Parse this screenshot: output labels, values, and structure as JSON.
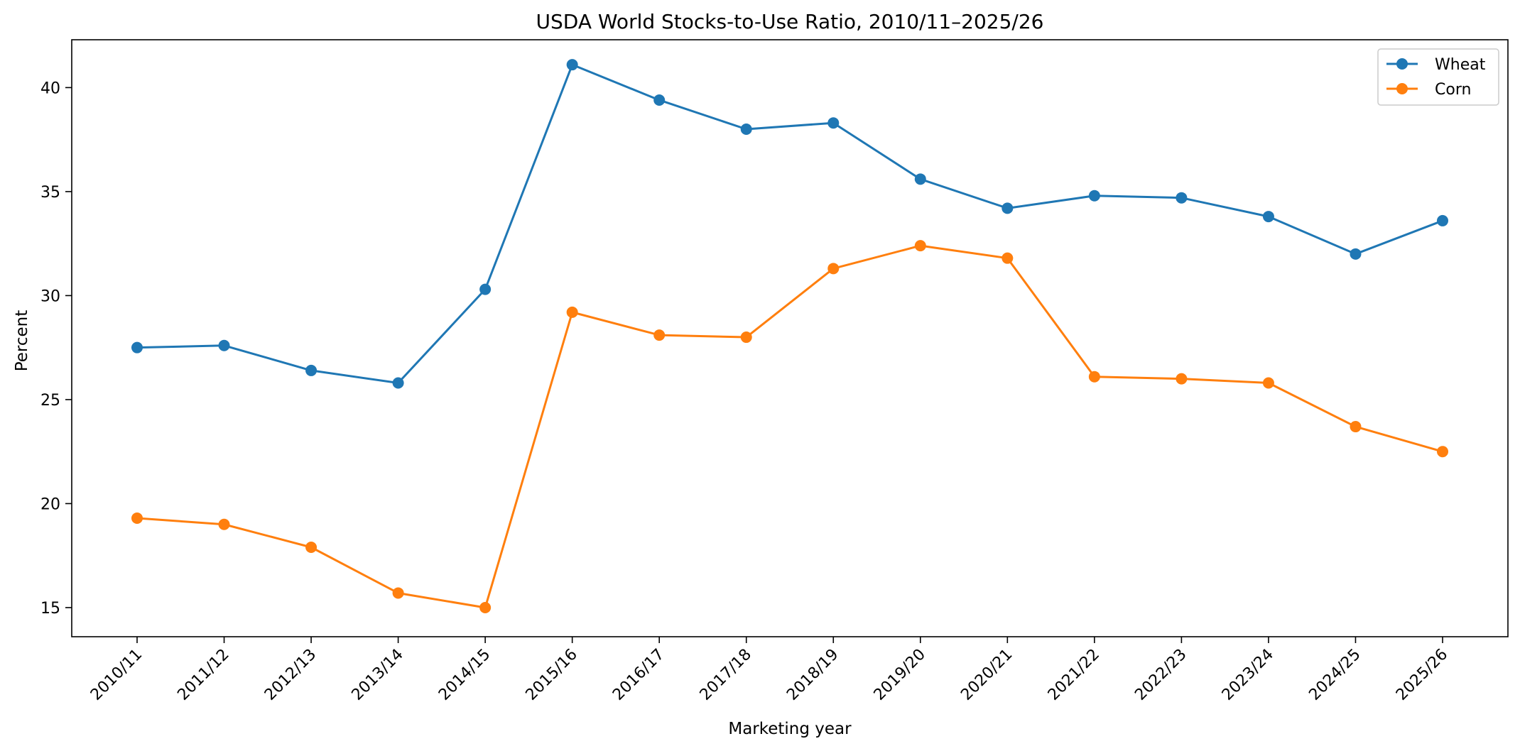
{
  "chart_data": {
    "type": "line",
    "title": "USDA World Stocks-to-Use Ratio, 2010/11–2025/26",
    "xlabel": "Marketing year",
    "ylabel": "Percent",
    "categories": [
      "2010/11",
      "2011/12",
      "2012/13",
      "2013/14",
      "2014/15",
      "2015/16",
      "2016/17",
      "2017/18",
      "2018/19",
      "2019/20",
      "2020/21",
      "2021/22",
      "2022/23",
      "2023/24",
      "2024/25",
      "2025/26"
    ],
    "ylim": [
      13.6,
      42.3
    ],
    "yticks": [
      15,
      20,
      25,
      30,
      35,
      40
    ],
    "grid": false,
    "legend_position": "top-right",
    "series": [
      {
        "name": "Wheat",
        "color": "#1f77b4",
        "values": [
          27.5,
          27.6,
          26.4,
          25.8,
          30.3,
          41.1,
          39.4,
          38.0,
          38.3,
          35.6,
          34.2,
          34.8,
          34.7,
          33.8,
          32.0,
          33.6
        ]
      },
      {
        "name": "Corn",
        "color": "#ff7f0e",
        "values": [
          19.3,
          19.0,
          17.9,
          15.7,
          15.0,
          29.2,
          28.1,
          28.0,
          31.3,
          32.4,
          31.8,
          26.1,
          26.0,
          25.8,
          23.7,
          22.5
        ]
      }
    ]
  }
}
